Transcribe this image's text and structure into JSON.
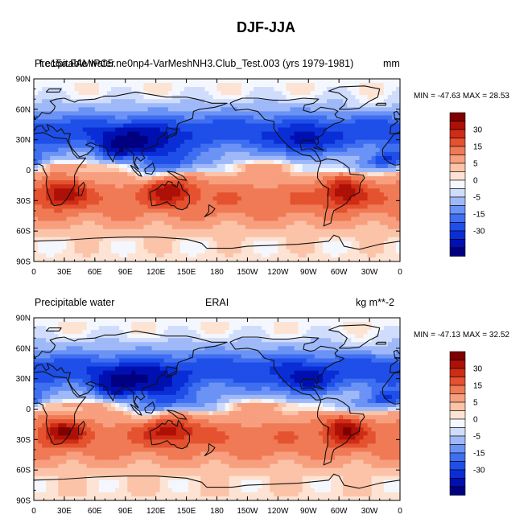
{
  "figure": {
    "title": "DJF-JJA"
  },
  "chart_data": [
    {
      "type": "heatmap",
      "left_title": "Precipitable water",
      "center_title": "f.e15a.FAMIPC5.ne0np4-VarMeshNH3.Club_Test.003 (yrs 1979-1981)",
      "right_title": "mm",
      "stats_text": "MIN = -47.63 MAX =  28.53",
      "min": -47.63,
      "max": 28.53,
      "x_ticks": [
        "0",
        "30E",
        "60E",
        "90E",
        "120E",
        "150E",
        "180",
        "150W",
        "120W",
        "90W",
        "60W",
        "30W",
        "0"
      ],
      "y_ticks": [
        "90N",
        "60N",
        "30N",
        "0",
        "30S",
        "60S",
        "90S"
      ],
      "colorbar_labels": [
        "30",
        "15",
        "5",
        "0",
        "-5",
        "-15",
        "-30"
      ]
    },
    {
      "type": "heatmap",
      "left_title": "Precipitable water",
      "center_title": "ERAI",
      "right_title": "kg m**-2",
      "stats_text": "MIN = -47.13 MAX =  32.52",
      "min": -47.13,
      "max": 32.52,
      "x_ticks": [
        "0",
        "30E",
        "60E",
        "90E",
        "120E",
        "150E",
        "180",
        "150W",
        "120W",
        "90W",
        "60W",
        "30W",
        "0"
      ],
      "y_ticks": [
        "90N",
        "60N",
        "30N",
        "0",
        "30S",
        "60S",
        "90S"
      ],
      "colorbar_labels": [
        "30",
        "15",
        "5",
        "0",
        "-5",
        "-15",
        "-30"
      ]
    }
  ],
  "colors": {
    "scale": [
      "#000080",
      "#0010b0",
      "#0a2ed6",
      "#1f4fe8",
      "#3f6ff0",
      "#6b93f5",
      "#9fb9f8",
      "#cfdcfb",
      "#f4f7fe",
      "#fde3d3",
      "#fbc3a8",
      "#f79f7e",
      "#f07a55",
      "#e4522f",
      "#cf2c16",
      "#ad1007",
      "#7f0000"
    ],
    "coast": "#111111"
  }
}
